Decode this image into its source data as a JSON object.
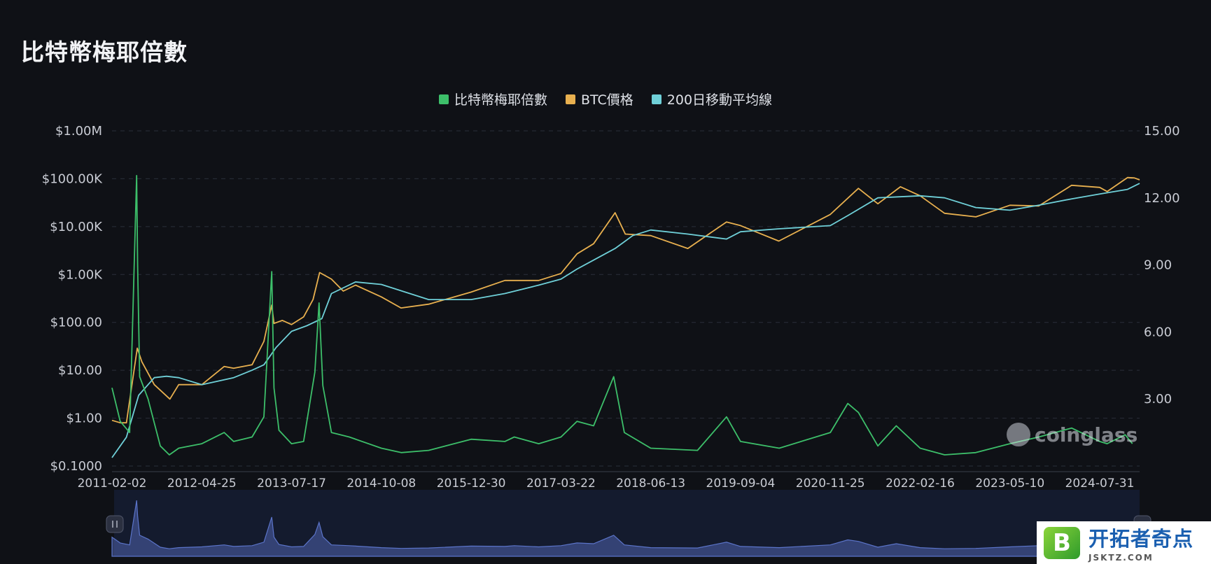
{
  "title": "比特幣梅耶倍數",
  "colors": {
    "multiple": "#3dbf6a",
    "price": "#e8b04f",
    "ma200": "#6fd0d8",
    "navigator": "#5b74c9"
  },
  "watermark": "coinglass",
  "badge": {
    "name": "开拓者奇点",
    "url": "JSKTZ.COM"
  },
  "chart_data": {
    "type": "line",
    "title": "比特幣梅耶倍數",
    "legend_position": "top-center",
    "grid": true,
    "x_ticks": [
      "2011-02-02",
      "2012-04-25",
      "2013-07-17",
      "2014-10-08",
      "2015-12-30",
      "2017-03-22",
      "2018-06-13",
      "2019-09-04",
      "2020-11-25",
      "2022-02-16",
      "2023-05-10",
      "2024-07-31"
    ],
    "y_left": {
      "scale": "log",
      "range": [
        0.1,
        1000000
      ],
      "tick_labels": [
        "$0.1000",
        "$1.00",
        "$10.00",
        "$100.00",
        "$1.00K",
        "$10.00K",
        "$100.00K",
        "$1.00M"
      ]
    },
    "y_right": {
      "scale": "linear",
      "range": [
        0,
        15
      ],
      "tick_labels": [
        "3.00",
        "6.00",
        "9.00",
        "12.00",
        "15.00"
      ],
      "ticks": [
        3,
        6,
        9,
        12,
        15
      ]
    },
    "series": [
      {
        "name": "比特幣梅耶倍數",
        "axis": "right",
        "x": [
          "2011-02-02",
          "2011-03-15",
          "2011-05-01",
          "2011-06-05",
          "2011-06-10",
          "2011-06-20",
          "2011-08-01",
          "2011-10-01",
          "2011-11-15",
          "2012-01-01",
          "2012-04-25",
          "2012-08-15",
          "2012-10-01",
          "2013-01-01",
          "2013-03-01",
          "2013-04-09",
          "2013-04-20",
          "2013-05-15",
          "2013-07-17",
          "2013-09-15",
          "2013-11-10",
          "2013-12-01",
          "2013-12-20",
          "2014-02-01",
          "2014-05-01",
          "2014-10-08",
          "2015-01-15",
          "2015-06-01",
          "2015-12-30",
          "2016-06-15",
          "2016-08-01",
          "2016-12-01",
          "2017-03-22",
          "2017-06-10",
          "2017-09-01",
          "2017-12-10",
          "2018-02-01",
          "2018-06-13",
          "2019-02-01",
          "2019-06-26",
          "2019-09-04",
          "2020-03-15",
          "2020-11-25",
          "2021-02-20",
          "2021-04-14",
          "2021-07-20",
          "2021-10-20",
          "2022-02-16",
          "2022-06-18",
          "2022-11-20",
          "2023-05-10",
          "2023-10-01",
          "2024-03-13",
          "2024-07-31",
          "2024-09-06",
          "2024-12-05",
          "2025-01-10"
        ],
        "y": [
          3.5,
          2.0,
          1.5,
          13.0,
          9.0,
          4.0,
          3.0,
          0.9,
          0.5,
          0.8,
          1.0,
          1.5,
          1.1,
          1.3,
          2.2,
          8.7,
          3.5,
          1.6,
          1.0,
          1.1,
          4.2,
          7.3,
          3.6,
          1.5,
          1.3,
          0.8,
          0.6,
          0.7,
          1.2,
          1.1,
          1.3,
          1.0,
          1.3,
          2.0,
          1.8,
          4.0,
          1.5,
          0.8,
          0.7,
          2.2,
          1.1,
          0.8,
          1.5,
          2.8,
          2.4,
          0.9,
          1.8,
          0.8,
          0.5,
          0.6,
          1.0,
          1.3,
          1.7,
          1.1,
          1.0,
          1.4,
          1.0
        ]
      },
      {
        "name": "BTC價格",
        "axis": "left",
        "x": [
          "2011-02-02",
          "2011-03-15",
          "2011-04-15",
          "2011-06-08",
          "2011-07-01",
          "2011-09-01",
          "2011-11-18",
          "2012-01-01",
          "2012-04-25",
          "2012-08-15",
          "2012-10-01",
          "2013-01-01",
          "2013-03-01",
          "2013-04-09",
          "2013-04-20",
          "2013-06-01",
          "2013-07-17",
          "2013-09-15",
          "2013-11-01",
          "2013-12-04",
          "2014-02-01",
          "2014-04-01",
          "2014-06-01",
          "2014-10-08",
          "2015-01-14",
          "2015-06-01",
          "2015-12-30",
          "2016-06-15",
          "2016-12-01",
          "2017-03-22",
          "2017-06-10",
          "2017-09-01",
          "2017-12-17",
          "2018-02-06",
          "2018-06-13",
          "2018-12-15",
          "2019-06-26",
          "2019-09-04",
          "2020-03-13",
          "2020-11-25",
          "2021-04-14",
          "2021-07-20",
          "2021-11-10",
          "2022-02-16",
          "2022-06-18",
          "2022-11-21",
          "2023-05-10",
          "2023-10-01",
          "2024-03-13",
          "2024-07-31",
          "2024-09-06",
          "2024-12-17",
          "2025-01-20",
          "2025-02-15"
        ],
        "y": [
          0.9,
          0.8,
          0.8,
          29,
          15,
          5,
          2.5,
          5,
          5,
          12,
          11,
          13,
          40,
          230,
          95,
          110,
          90,
          130,
          300,
          1100,
          800,
          450,
          600,
          340,
          200,
          240,
          430,
          750,
          750,
          1050,
          2700,
          4400,
          19500,
          7000,
          6500,
          3500,
          12500,
          10500,
          5000,
          18000,
          63000,
          30000,
          68000,
          44000,
          19000,
          16000,
          28000,
          27000,
          73000,
          66000,
          54000,
          106000,
          104000,
          95000
        ]
      },
      {
        "name": "200日移動平均線",
        "axis": "left",
        "x": [
          "2011-02-02",
          "2011-04-15",
          "2011-06-15",
          "2011-09-01",
          "2011-11-01",
          "2012-01-01",
          "2012-04-25",
          "2012-10-01",
          "2013-01-01",
          "2013-03-01",
          "2013-05-01",
          "2013-07-17",
          "2013-10-01",
          "2013-12-15",
          "2014-02-01",
          "2014-06-01",
          "2014-10-08",
          "2015-06-01",
          "2015-12-30",
          "2016-06-15",
          "2016-12-01",
          "2017-03-22",
          "2017-06-10",
          "2017-09-01",
          "2017-12-17",
          "2018-03-15",
          "2018-06-13",
          "2018-12-15",
          "2019-06-26",
          "2019-09-04",
          "2020-03-13",
          "2020-11-25",
          "2021-02-20",
          "2021-07-20",
          "2022-02-16",
          "2022-06-18",
          "2022-11-21",
          "2023-05-10",
          "2023-10-01",
          "2024-03-13",
          "2024-07-31",
          "2024-12-17",
          "2025-02-15"
        ],
        "y": [
          0.15,
          0.4,
          3.0,
          7.0,
          7.5,
          7.0,
          5.0,
          7.0,
          10,
          13,
          30,
          65,
          85,
          120,
          400,
          700,
          620,
          300,
          300,
          400,
          600,
          800,
          1300,
          2000,
          3500,
          6500,
          8500,
          7000,
          5500,
          7800,
          9000,
          10500,
          17000,
          40000,
          44000,
          40000,
          25000,
          22000,
          28000,
          38000,
          48000,
          60000,
          80000
        ]
      }
    ]
  }
}
